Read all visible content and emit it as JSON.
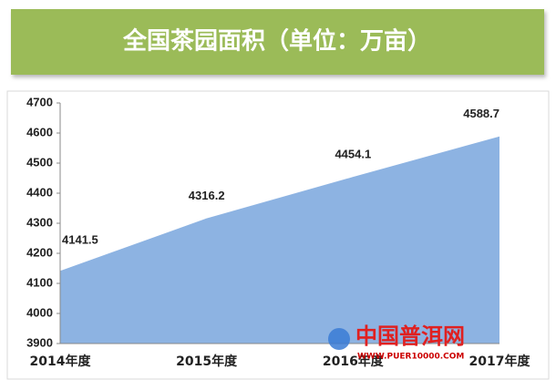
{
  "chart_data": {
    "type": "area",
    "title": "全国茶园面积（单位：万亩）",
    "categories": [
      "2014年度",
      "2015年度",
      "2016年度",
      "2017年度"
    ],
    "values": [
      4141.5,
      4316.2,
      4454.1,
      4588.7
    ],
    "color": "#8db3e2",
    "ylim": [
      3900,
      4700
    ],
    "yticks": [
      3900,
      4000,
      4100,
      4200,
      4300,
      4400,
      4500,
      4600,
      4700
    ]
  },
  "watermark": {
    "name": "中国普洱网",
    "url": "WWW.PUER10000.COM"
  }
}
